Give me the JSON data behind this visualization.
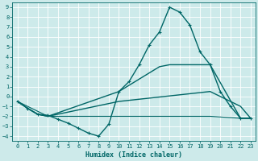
{
  "xlabel": "Humidex (Indice chaleur)",
  "bg_color": "#cdeaea",
  "grid_color": "#ffffff",
  "line_color": "#006666",
  "xlim": [
    -0.5,
    23.5
  ],
  "ylim": [
    -4.5,
    9.5
  ],
  "xticks": [
    0,
    1,
    2,
    3,
    4,
    5,
    6,
    7,
    8,
    9,
    10,
    11,
    12,
    13,
    14,
    15,
    16,
    17,
    18,
    19,
    20,
    21,
    22,
    23
  ],
  "yticks": [
    -4,
    -3,
    -2,
    -1,
    0,
    1,
    2,
    3,
    4,
    5,
    6,
    7,
    8,
    9
  ],
  "lines": [
    {
      "x": [
        0,
        1,
        2,
        3,
        4,
        5,
        6,
        7,
        8,
        9,
        10,
        11,
        12,
        13,
        14,
        15,
        16,
        17,
        18,
        19,
        20,
        21,
        22,
        23
      ],
      "y": [
        -0.5,
        -1.2,
        -1.8,
        -1.9,
        -2.3,
        -2.7,
        -3.2,
        -3.7,
        -4.0,
        -2.8,
        0.5,
        1.5,
        3.2,
        5.2,
        6.5,
        9.0,
        8.5,
        7.2,
        4.5,
        3.2,
        0.5,
        -1.0,
        -2.2,
        -2.2
      ],
      "marker": "+",
      "markersize": 3.5,
      "linewidth": 1.0
    },
    {
      "x": [
        0,
        1,
        2,
        3,
        10,
        14,
        15,
        16,
        19,
        22,
        23
      ],
      "y": [
        -0.5,
        -1.2,
        -1.8,
        -2.0,
        0.5,
        3.0,
        3.2,
        3.2,
        3.2,
        -2.2,
        -2.2
      ],
      "marker": null,
      "markersize": 0,
      "linewidth": 1.0
    },
    {
      "x": [
        0,
        1,
        2,
        3,
        10,
        19,
        22,
        23
      ],
      "y": [
        -0.5,
        -1.2,
        -1.8,
        -2.0,
        -0.5,
        0.5,
        -1.0,
        -2.2
      ],
      "marker": null,
      "markersize": 0,
      "linewidth": 1.0
    },
    {
      "x": [
        0,
        3,
        10,
        19,
        22,
        23
      ],
      "y": [
        -0.5,
        -2.0,
        -2.0,
        -2.0,
        -2.2,
        -2.2
      ],
      "marker": null,
      "markersize": 0,
      "linewidth": 0.8
    }
  ]
}
